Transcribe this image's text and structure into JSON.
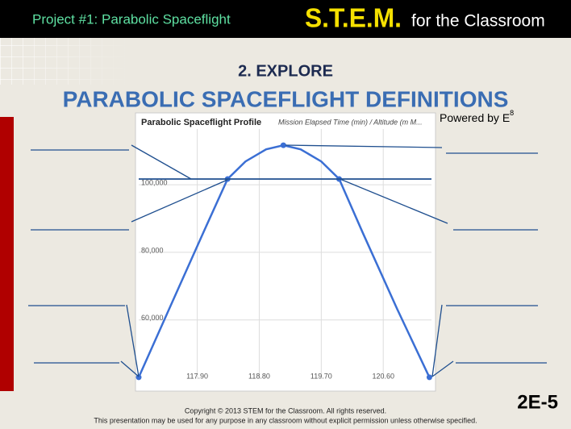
{
  "header": {
    "project": "Project #1: Parabolic Spaceflight",
    "brand": "S.T.E.M.",
    "brand_suffix": "for the Classroom"
  },
  "section": "2. EXPLORE",
  "title": "PARABOLIC SPACEFLIGHT DEFINITIONS",
  "powered": {
    "text": "Powered by E",
    "superscript": "8"
  },
  "footer": {
    "copyright": "Copyright © 2013 STEM for the Classroom. All rights reserved.",
    "notice": "This presentation may be used for any purpose in any classroom without explicit permission unless otherwise specified.",
    "slide_number": "2E-5"
  },
  "chart_data": {
    "type": "line",
    "title": "Parabolic Spaceflight Profile",
    "subtitle": "Mission Elapsed Time (min) / Altitude (m M...",
    "x": [
      117.05,
      117.5,
      118.0,
      118.34,
      118.6,
      118.9,
      119.15,
      119.4,
      119.7,
      119.96,
      120.3,
      120.8,
      121.27
    ],
    "series": [
      {
        "name": "Altitude",
        "color": "#3b6fd4",
        "values": [
          43000,
          63600,
          86400,
          101700,
          106900,
          110500,
          111700,
          110500,
          106900,
          101700,
          85900,
          63300,
          43000
        ]
      }
    ],
    "xlim": [
      117.05,
      121.3
    ],
    "xticks": [
      {
        "value": 117.9,
        "label": "117.90"
      },
      {
        "value": 118.8,
        "label": "118.80"
      },
      {
        "value": 119.7,
        "label": "119.70"
      },
      {
        "value": 120.6,
        "label": "120.60"
      }
    ],
    "ylim": [
      42500,
      116500
    ],
    "yticks": [
      {
        "value": 60000,
        "label": "60,000"
      },
      {
        "value": 80000,
        "label": "80,000"
      },
      {
        "value": 100000,
        "label": "100,000"
      }
    ],
    "grid": true
  }
}
